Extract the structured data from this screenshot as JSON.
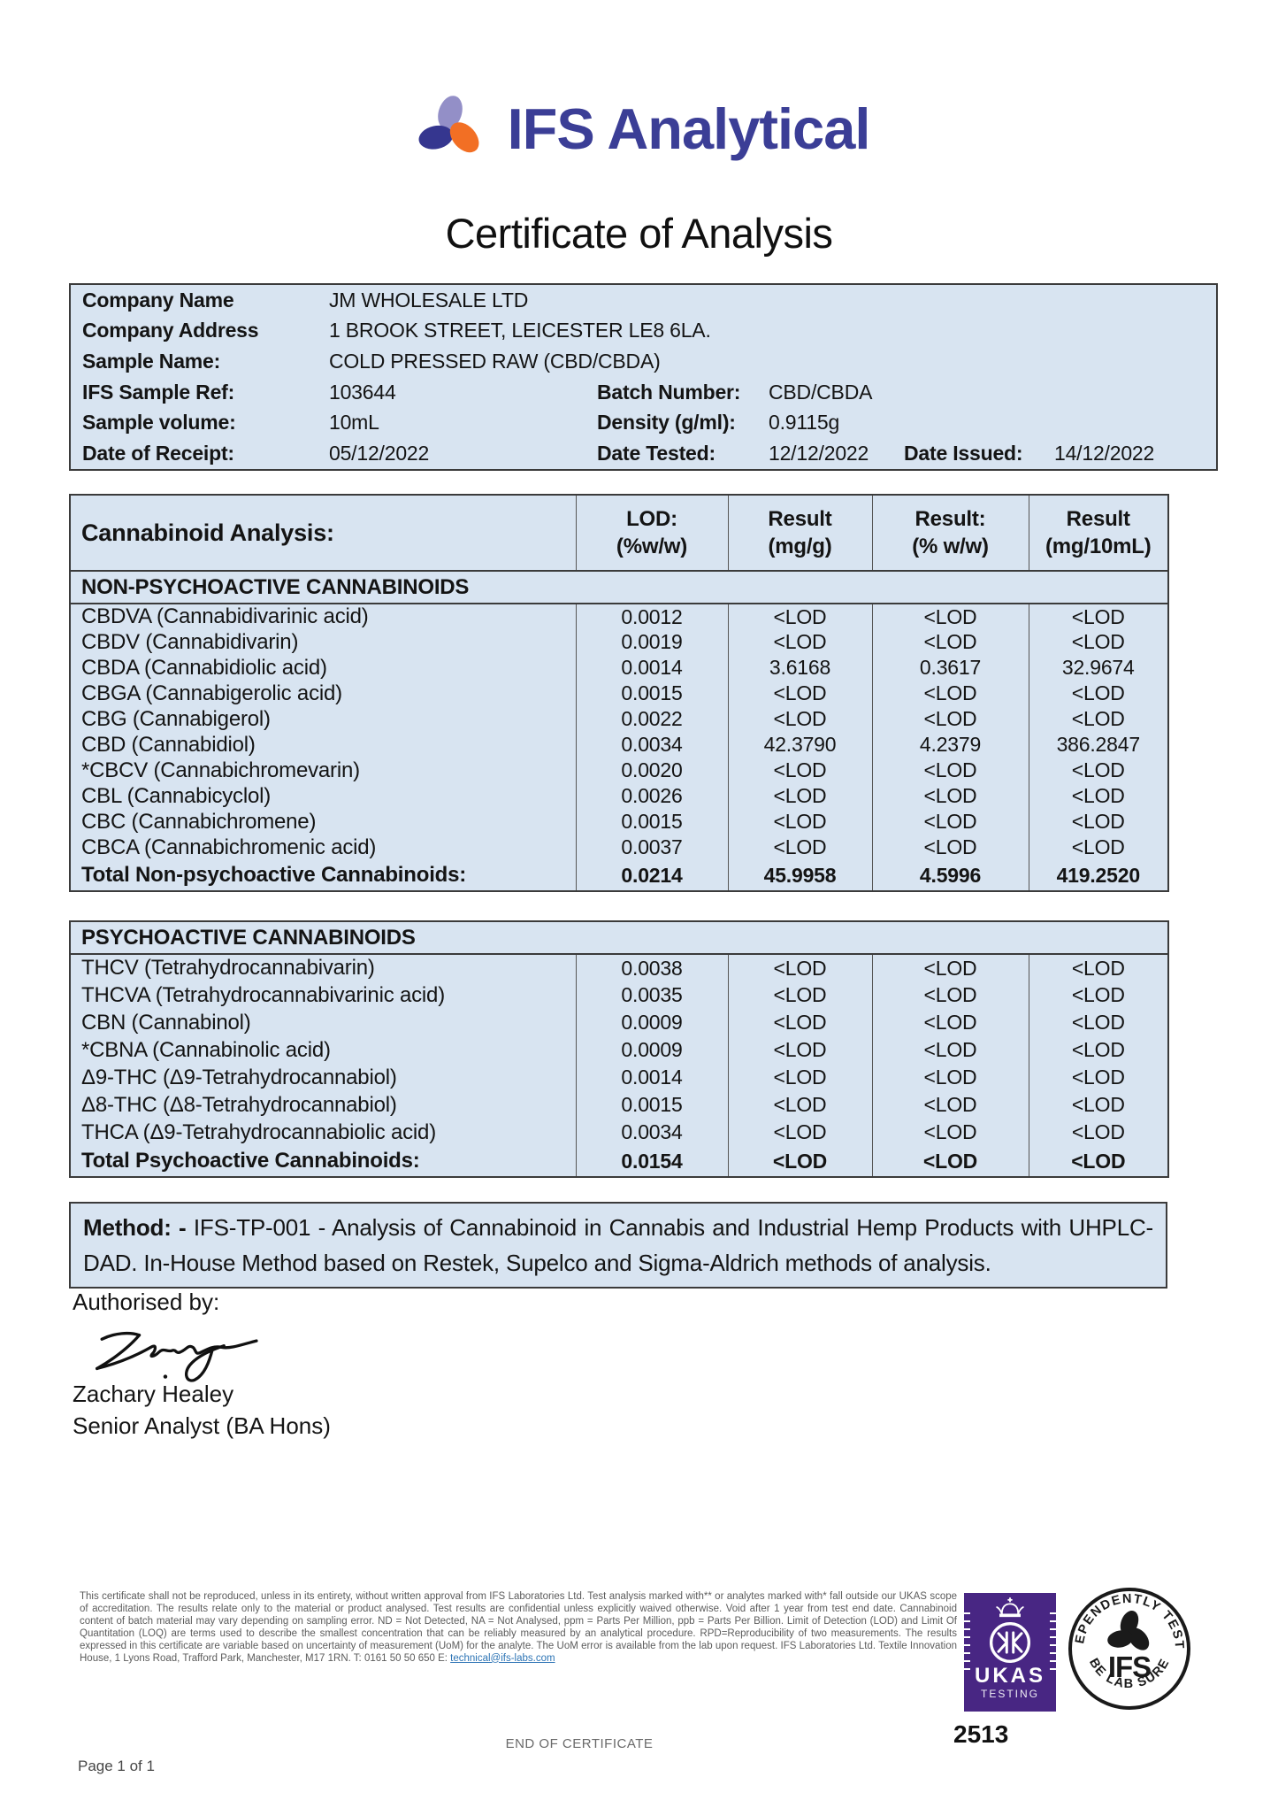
{
  "brand": {
    "name": "IFS Analytical"
  },
  "title": "Certificate of Analysis",
  "info": {
    "company_name_label": "Company Name",
    "company_name": "JM WHOLESALE LTD",
    "company_address_label": "Company Address",
    "company_address": "1 BROOK STREET, LEICESTER LE8 6LA.",
    "sample_name_label": "Sample Name:",
    "sample_name": "COLD PRESSED RAW (CBD/CBDA)",
    "ifs_sample_ref_label": "IFS Sample Ref:",
    "ifs_sample_ref": "103644",
    "batch_number_label": "Batch Number:",
    "batch_number": "CBD/CBDA",
    "sample_volume_label": "Sample volume:",
    "sample_volume": "10mL",
    "density_label": "Density (g/ml):",
    "density": "0.9115g",
    "date_receipt_label": "Date of Receipt:",
    "date_receipt": "05/12/2022",
    "date_tested_label": "Date Tested:",
    "date_tested": "12/12/2022",
    "date_issued_label": "Date Issued:",
    "date_issued": "14/12/2022"
  },
  "analysis": {
    "title": "Cannabinoid Analysis:",
    "columns": [
      {
        "l1": "LOD:",
        "l2": "(%w/w)"
      },
      {
        "l1": "Result",
        "l2": "(mg/g)"
      },
      {
        "l1": "Result:",
        "l2": "(% w/w)"
      },
      {
        "l1": "Result",
        "l2": "(mg/10mL)"
      }
    ],
    "sections": [
      {
        "heading": "NON-PSYCHOACTIVE CANNABINOIDS",
        "rows": [
          [
            "CBDVA (Cannabidivarinic acid)",
            "0.0012",
            "<LOD",
            "<LOD",
            "<LOD"
          ],
          [
            "CBDV (Cannabidivarin)",
            "0.0019",
            "<LOD",
            "<LOD",
            "<LOD"
          ],
          [
            "CBDA (Cannabidiolic acid)",
            "0.0014",
            "3.6168",
            "0.3617",
            "32.9674"
          ],
          [
            "CBGA (Cannabigerolic acid)",
            "0.0015",
            "<LOD",
            "<LOD",
            "<LOD"
          ],
          [
            "CBG (Cannabigerol)",
            "0.0022",
            "<LOD",
            "<LOD",
            "<LOD"
          ],
          [
            "CBD (Cannabidiol)",
            "0.0034",
            "42.3790",
            "4.2379",
            "386.2847"
          ],
          [
            "*CBCV (Cannabichromevarin)",
            "0.0020",
            "<LOD",
            "<LOD",
            "<LOD"
          ],
          [
            "CBL (Cannabicyclol)",
            "0.0026",
            "<LOD",
            "<LOD",
            "<LOD"
          ],
          [
            "CBC (Cannabichromene)",
            "0.0015",
            "<LOD",
            "<LOD",
            "<LOD"
          ],
          [
            "CBCA (Cannabichromenic acid)",
            "0.0037",
            "<LOD",
            "<LOD",
            "<LOD"
          ]
        ],
        "total": [
          "Total Non-psychoactive Cannabinoids:",
          "0.0214",
          "45.9958",
          "4.5996",
          "419.2520"
        ]
      },
      {
        "heading": "PSYCHOACTIVE CANNABINOIDS",
        "rows": [
          [
            "THCV (Tetrahydrocannabivarin)",
            "0.0038",
            "<LOD",
            "<LOD",
            "<LOD"
          ],
          [
            "THCVA (Tetrahydrocannabivarinic acid)",
            "0.0035",
            "<LOD",
            "<LOD",
            "<LOD"
          ],
          [
            "CBN (Cannabinol)",
            "0.0009",
            "<LOD",
            "<LOD",
            "<LOD"
          ],
          [
            "*CBNA (Cannabinolic acid)",
            "0.0009",
            "<LOD",
            "<LOD",
            "<LOD"
          ],
          [
            "Δ9-THC (Δ9-Tetrahydrocannabiol)",
            "0.0014",
            "<LOD",
            "<LOD",
            "<LOD"
          ],
          [
            "Δ8-THC (Δ8-Tetrahydrocannabiol)",
            "0.0015",
            "<LOD",
            "<LOD",
            "<LOD"
          ],
          [
            "THCA (Δ9-Tetrahydrocannabiolic acid)",
            "0.0034",
            "<LOD",
            "<LOD",
            "<LOD"
          ]
        ],
        "total": [
          "Total Psychoactive Cannabinoids:",
          "0.0154",
          "<LOD",
          "<LOD",
          "<LOD"
        ]
      }
    ]
  },
  "method": {
    "label": "Method: -",
    "text": "IFS-TP-001 - Analysis of Cannabinoid in Cannabis and Industrial Hemp Products with UHPLC-DAD. In-House Method based on Restek, Supelco and Sigma-Aldrich methods of analysis."
  },
  "authorised": {
    "label": "Authorised by:",
    "name": "Zachary Healey",
    "role": "Senior Analyst (BA Hons)"
  },
  "footer": {
    "disclaimer_before_link": "This certificate shall not be reproduced, unless in its entirety, without written approval from IFS Laboratories Ltd. Test analysis marked with** or analytes marked with* fall outside our UKAS scope of accreditation.  The results relate only to the material or product analysed. Test results are confidential unless explicitly waived otherwise. Void after 1 year from test end date. Cannabinoid content of batch material may vary depending on sampling error. ND = Not Detected, NA = Not Analysed, ppm = Parts Per Million, ppb = Parts Per Billion. Limit of Detection (LOD) and Limit Of Quantitation (LOQ) are terms used to describe the smallest concentration that can be reliably measured by an analytical procedure. RPD=Reproducibility of two measurements. The results expressed in this certificate are variable based on uncertainty of measurement (UoM) for the analyte. The UoM error is available from the lab upon request. IFS Laboratories Ltd. Textile Innovation House, 1 Lyons Road, Trafford Park, Manchester, M17 1RN. T: 0161 50 50 650 E: ",
    "email_link": "technical@ifs-labs.com",
    "end_text": "END OF CERTIFICATE",
    "page_text": "Page 1 of 1",
    "ukas": {
      "word": "UKAS",
      "sub": "TESTING",
      "number": "2513"
    },
    "stamp": {
      "top": "INDEPENDENTLY TESTED",
      "center": "IFS",
      "bottom": "BE LAB SURE"
    }
  },
  "colors": {
    "brand_indigo": "#3b3e96",
    "logo_lavender": "#938fc7",
    "logo_navy": "#35368f",
    "logo_orange": "#f26f24",
    "table_blue": "#d8e4f1",
    "ukas_purple": "#482683",
    "link_blue": "#2d74b5"
  }
}
